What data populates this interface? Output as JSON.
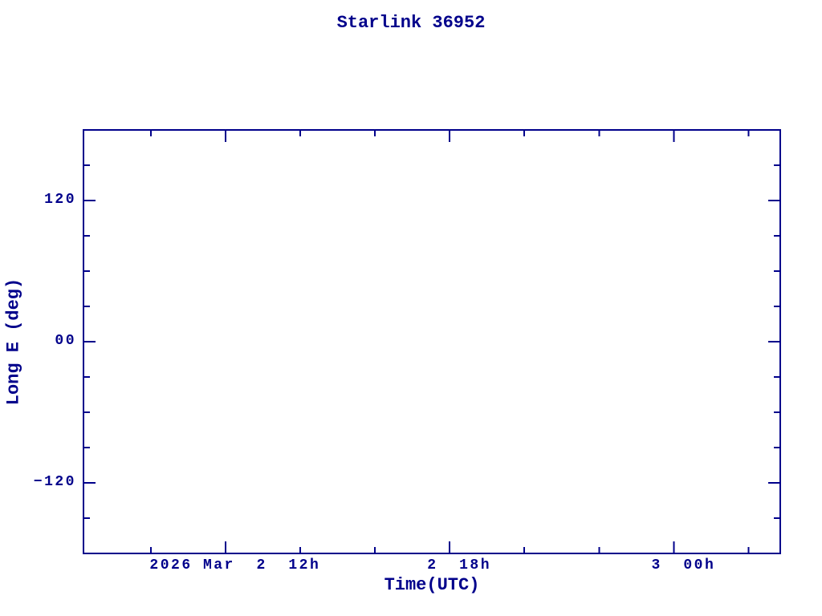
{
  "colors": {
    "accent": "#00008B",
    "background": "#ffffff"
  },
  "chart_data": {
    "type": "line",
    "title": "Starlink 36952",
    "xlabel": "Time(UTC)",
    "ylabel": "Long E (deg)",
    "series": [],
    "legend": null,
    "grid": false,
    "x_axis": {
      "unit": "hours (UTC), date 2026 Mar 2-3",
      "range_hours": [
        8.2,
        26.85
      ],
      "major_ticks": [
        {
          "hour": 12,
          "label": "2026 Mar  2  12h"
        },
        {
          "hour": 18,
          "label": "2  18h"
        },
        {
          "hour": 24,
          "label": "3  00h"
        }
      ],
      "minor_tick_interval_hours": 2
    },
    "y_axis": {
      "range_deg": [
        -180,
        180
      ],
      "major_ticks": [
        {
          "deg": 120,
          "label": "120"
        },
        {
          "deg": 0,
          "label": "00"
        },
        {
          "deg": -120,
          "label": "−120"
        }
      ],
      "minor_tick_interval_deg": 30
    }
  }
}
